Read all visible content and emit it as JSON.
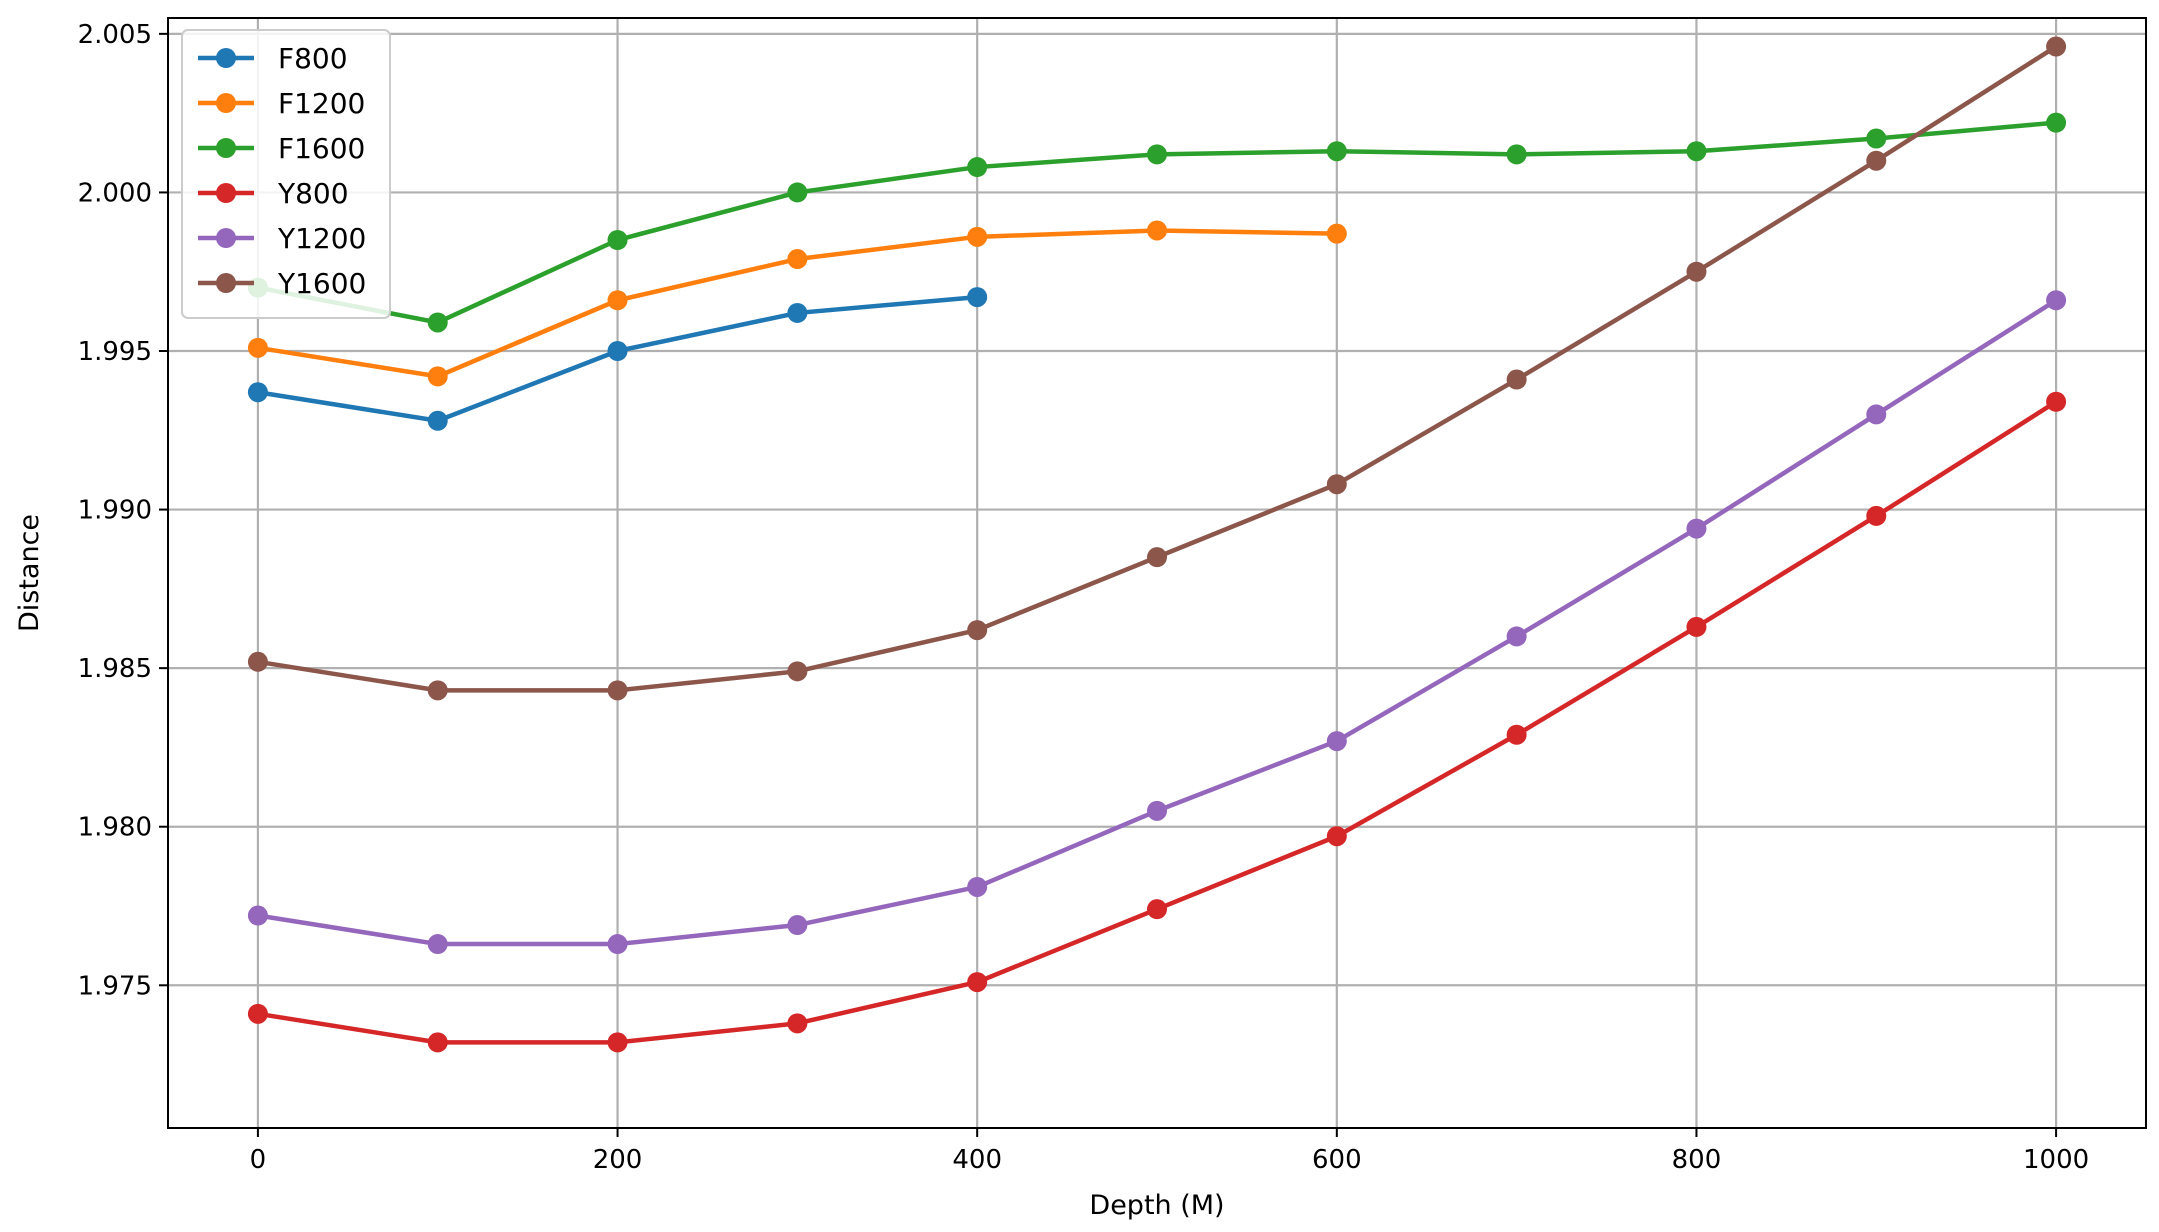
{
  "chart_data": {
    "type": "line",
    "xlabel": "Depth (M)",
    "ylabel": "Distance",
    "xlim": [
      -50,
      1050
    ],
    "ylim": [
      1.9705,
      2.0055
    ],
    "xticks": [
      0,
      200,
      400,
      600,
      800,
      1000
    ],
    "xtick_labels": [
      "0",
      "200",
      "400",
      "600",
      "800",
      "1000"
    ],
    "yticks": [
      1.975,
      1.98,
      1.985,
      1.99,
      1.995,
      2.0,
      2.005
    ],
    "ytick_labels": [
      "1.975",
      "1.980",
      "1.985",
      "1.990",
      "1.995",
      "2.000",
      "2.005"
    ],
    "grid": true,
    "legend_position": "top-left",
    "series": [
      {
        "name": "F800",
        "color": "#1f77b4",
        "x": [
          0,
          100,
          200,
          300,
          400
        ],
        "y": [
          1.9937,
          1.9928,
          1.995,
          1.9962,
          1.9967
        ]
      },
      {
        "name": "F1200",
        "color": "#ff7f0e",
        "x": [
          0,
          100,
          200,
          300,
          400,
          500,
          600
        ],
        "y": [
          1.9951,
          1.9942,
          1.9966,
          1.9979,
          1.9986,
          1.9988,
          1.9987
        ]
      },
      {
        "name": "F1600",
        "color": "#2ca02c",
        "x": [
          0,
          100,
          200,
          300,
          400,
          500,
          600,
          700,
          800,
          900,
          1000
        ],
        "y": [
          1.997,
          1.9959,
          1.9985,
          2.0,
          2.0008,
          2.0012,
          2.0013,
          2.0012,
          2.0013,
          2.0017,
          2.0022
        ]
      },
      {
        "name": "Y800",
        "color": "#d62728",
        "x": [
          0,
          100,
          200,
          300,
          400,
          500,
          600,
          700,
          800,
          900,
          1000
        ],
        "y": [
          1.9741,
          1.9732,
          1.9732,
          1.9738,
          1.9751,
          1.9774,
          1.9797,
          1.9829,
          1.9863,
          1.9898,
          1.9934
        ]
      },
      {
        "name": "Y1200",
        "color": "#9467bd",
        "x": [
          0,
          100,
          200,
          300,
          400,
          500,
          600,
          700,
          800,
          900,
          1000
        ],
        "y": [
          1.9772,
          1.9763,
          1.9763,
          1.9769,
          1.9781,
          1.9805,
          1.9827,
          1.986,
          1.9894,
          1.993,
          1.9966
        ]
      },
      {
        "name": "Y1600",
        "color": "#8c564b",
        "x": [
          0,
          100,
          200,
          300,
          400,
          500,
          600,
          700,
          800,
          900,
          1000
        ],
        "y": [
          1.9852,
          1.9843,
          1.9843,
          1.9849,
          1.9862,
          1.9885,
          1.9908,
          1.9941,
          1.9975,
          2.001,
          2.0046
        ]
      }
    ]
  }
}
